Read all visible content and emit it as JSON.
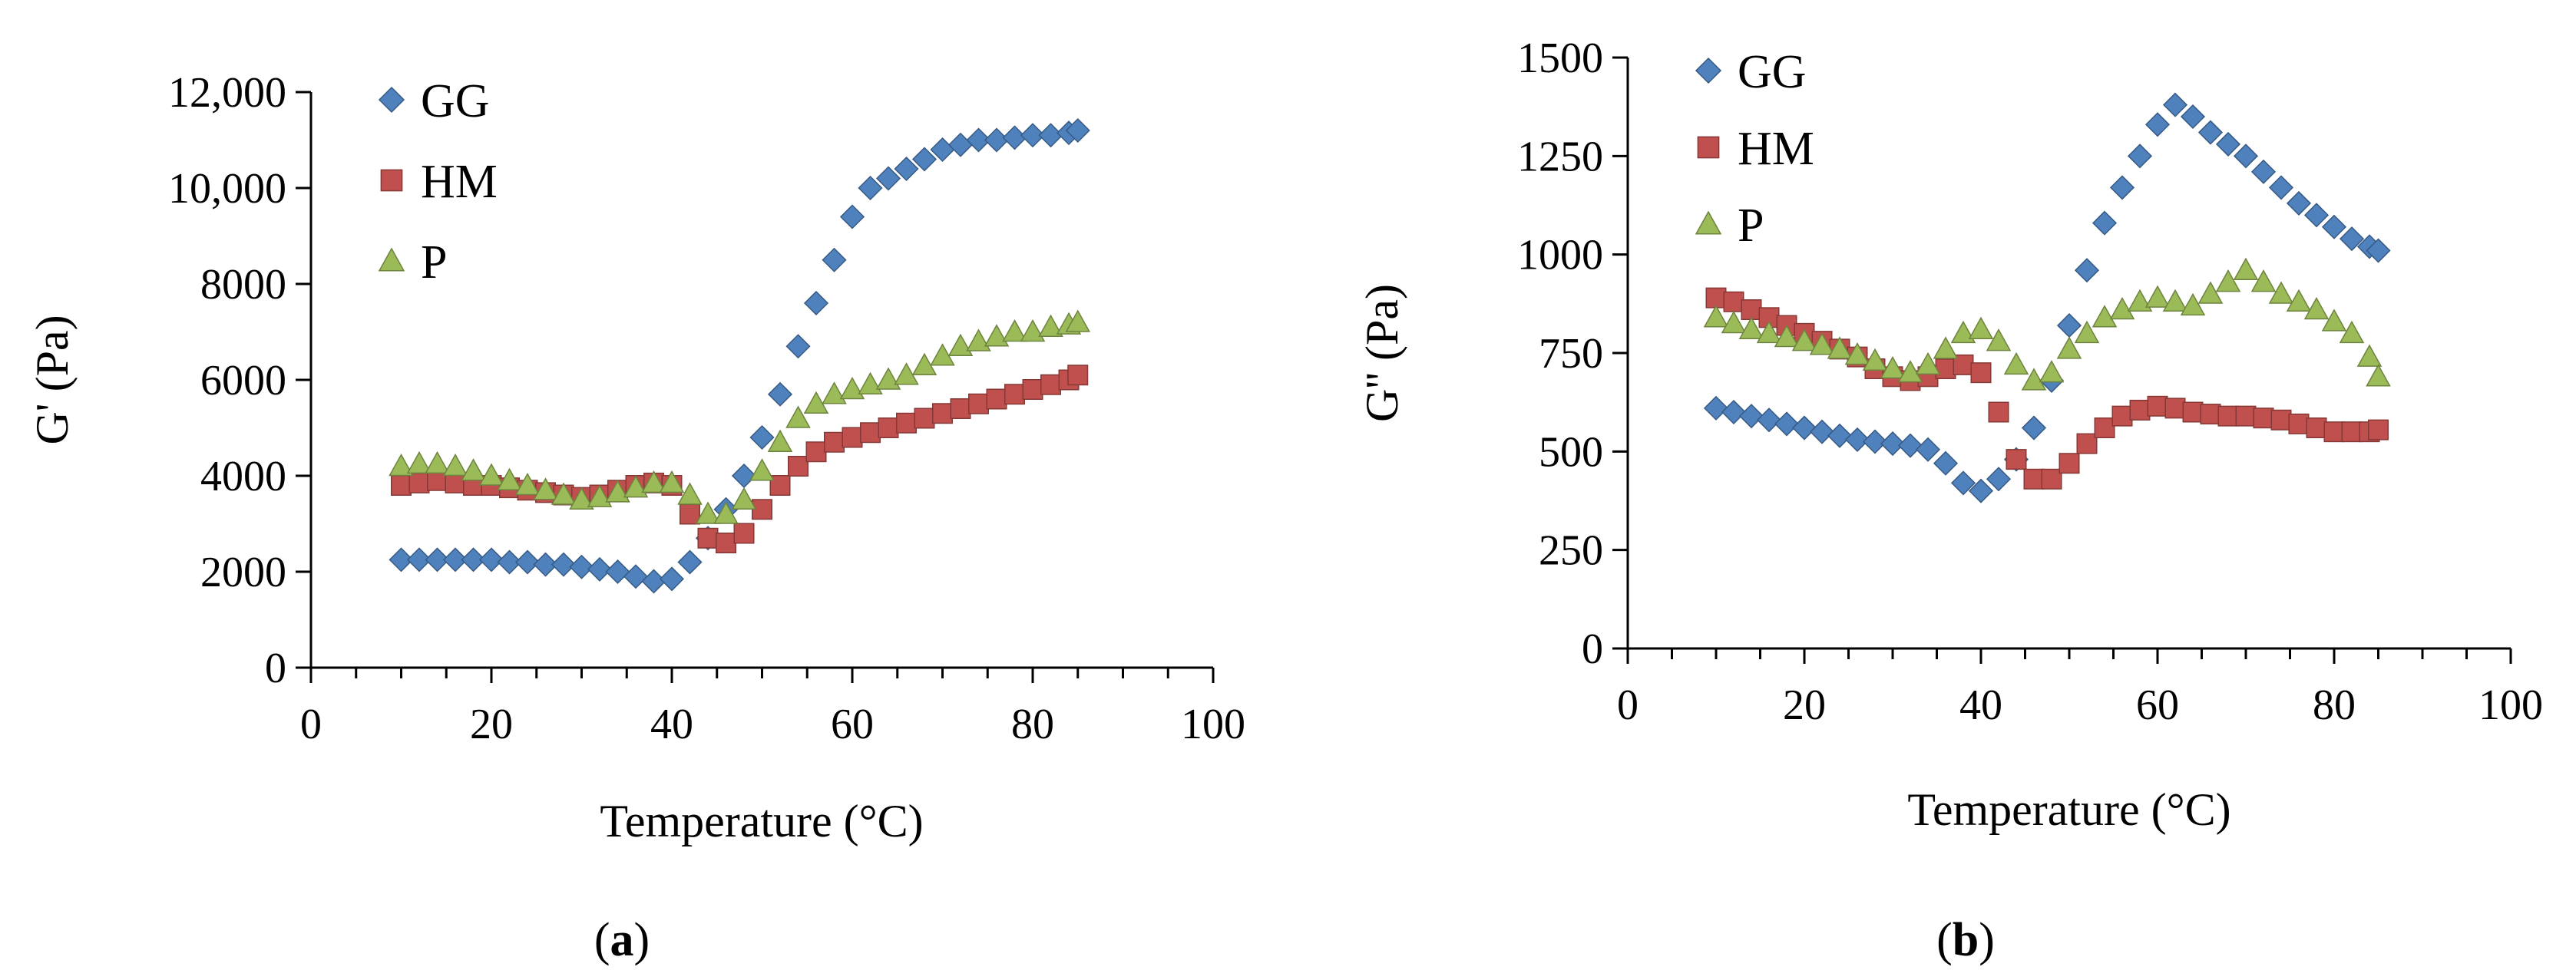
{
  "chart_data": [
    {
      "panel": "a",
      "panel_label": {
        "open": "(",
        "letter": "a",
        "close": ")"
      },
      "type": "scatter",
      "title": "",
      "xlabel": "Temperature (°C)",
      "ylabel": "G' (Pa)",
      "xlim": [
        0,
        100
      ],
      "ylim": [
        0,
        12000
      ],
      "xticks": [
        0,
        20,
        40,
        60,
        80,
        100
      ],
      "xtick_labels": [
        "0",
        "20",
        "40",
        "60",
        "80",
        "100"
      ],
      "yticks": [
        0,
        2000,
        4000,
        6000,
        8000,
        10000,
        12000
      ],
      "ytick_labels": [
        "0",
        "2000",
        "4000",
        "6000",
        "8000",
        "10,000",
        "12,000"
      ],
      "legend_position": "top-left",
      "series": [
        {
          "name": "GG",
          "marker": "diamond",
          "color": "#4F81BD",
          "x": [
            10,
            12,
            14,
            16,
            18,
            20,
            22,
            24,
            26,
            28,
            30,
            32,
            34,
            36,
            38,
            40,
            42,
            44,
            46,
            48,
            50,
            52,
            54,
            56,
            58,
            60,
            62,
            64,
            66,
            68,
            70,
            72,
            74,
            76,
            78,
            80,
            82,
            84,
            85
          ],
          "y": [
            2250,
            2250,
            2250,
            2250,
            2250,
            2250,
            2200,
            2200,
            2150,
            2150,
            2100,
            2050,
            2000,
            1900,
            1800,
            1850,
            2200,
            2700,
            3300,
            4000,
            4800,
            5700,
            6700,
            7600,
            8500,
            9400,
            10000,
            10200,
            10400,
            10600,
            10800,
            10900,
            11000,
            11000,
            11050,
            11100,
            11100,
            11150,
            11200
          ]
        },
        {
          "name": "HM",
          "marker": "square",
          "color": "#C0504D",
          "x": [
            10,
            12,
            14,
            16,
            18,
            20,
            22,
            24,
            26,
            28,
            30,
            32,
            34,
            36,
            38,
            40,
            42,
            44,
            46,
            48,
            50,
            52,
            54,
            56,
            58,
            60,
            62,
            64,
            66,
            68,
            70,
            72,
            74,
            76,
            78,
            80,
            82,
            84,
            85
          ],
          "y": [
            3800,
            3850,
            3900,
            3850,
            3800,
            3800,
            3750,
            3700,
            3650,
            3600,
            3550,
            3600,
            3700,
            3800,
            3850,
            3800,
            3200,
            2700,
            2600,
            2800,
            3300,
            3800,
            4200,
            4500,
            4700,
            4800,
            4900,
            5000,
            5100,
            5200,
            5300,
            5400,
            5500,
            5600,
            5700,
            5800,
            5900,
            6000,
            6100
          ]
        },
        {
          "name": "P",
          "marker": "triangle",
          "color": "#9BBB59",
          "x": [
            10,
            12,
            14,
            16,
            18,
            20,
            22,
            24,
            26,
            28,
            30,
            32,
            34,
            36,
            38,
            40,
            42,
            44,
            46,
            48,
            50,
            52,
            54,
            56,
            58,
            60,
            62,
            64,
            66,
            68,
            70,
            72,
            74,
            76,
            78,
            80,
            82,
            84,
            85
          ],
          "y": [
            4200,
            4250,
            4250,
            4200,
            4100,
            4000,
            3900,
            3800,
            3700,
            3600,
            3500,
            3550,
            3650,
            3750,
            3850,
            3850,
            3600,
            3200,
            3200,
            3500,
            4100,
            4700,
            5200,
            5500,
            5700,
            5800,
            5900,
            6000,
            6100,
            6300,
            6500,
            6700,
            6800,
            6900,
            7000,
            7000,
            7100,
            7150,
            7200
          ]
        }
      ]
    },
    {
      "panel": "b",
      "panel_label": {
        "open": "(",
        "letter": "b",
        "close": ")"
      },
      "type": "scatter",
      "title": "",
      "xlabel": "Temperature (°C)",
      "ylabel": "G'' (Pa)",
      "xlim": [
        0,
        100
      ],
      "ylim": [
        0,
        1500
      ],
      "xticks": [
        0,
        20,
        40,
        60,
        80,
        100
      ],
      "xtick_labels": [
        "0",
        "20",
        "40",
        "60",
        "80",
        "100"
      ],
      "yticks": [
        0,
        250,
        500,
        750,
        1000,
        1250,
        1500
      ],
      "ytick_labels": [
        "0",
        "250",
        "500",
        "750",
        "1000",
        "1250",
        "1500"
      ],
      "legend_position": "top-left",
      "series": [
        {
          "name": "GG",
          "marker": "diamond",
          "color": "#4F81BD",
          "x": [
            10,
            12,
            14,
            16,
            18,
            20,
            22,
            24,
            26,
            28,
            30,
            32,
            34,
            36,
            38,
            40,
            42,
            44,
            46,
            48,
            50,
            52,
            54,
            56,
            58,
            60,
            62,
            64,
            66,
            68,
            70,
            72,
            74,
            76,
            78,
            80,
            82,
            84,
            85
          ],
          "y": [
            610,
            600,
            590,
            580,
            570,
            560,
            550,
            540,
            530,
            525,
            520,
            515,
            505,
            470,
            420,
            400,
            430,
            480,
            560,
            680,
            820,
            960,
            1080,
            1170,
            1250,
            1330,
            1380,
            1350,
            1310,
            1280,
            1250,
            1210,
            1170,
            1130,
            1100,
            1070,
            1040,
            1020,
            1010
          ]
        },
        {
          "name": "HM",
          "marker": "square",
          "color": "#C0504D",
          "x": [
            10,
            12,
            14,
            16,
            18,
            20,
            22,
            24,
            26,
            28,
            30,
            32,
            34,
            36,
            38,
            40,
            42,
            44,
            46,
            48,
            50,
            52,
            54,
            56,
            58,
            60,
            62,
            64,
            66,
            68,
            70,
            72,
            74,
            76,
            78,
            80,
            82,
            84,
            85
          ],
          "y": [
            890,
            880,
            860,
            840,
            820,
            800,
            780,
            760,
            740,
            710,
            690,
            680,
            690,
            710,
            720,
            700,
            600,
            480,
            430,
            430,
            470,
            520,
            560,
            590,
            605,
            615,
            610,
            600,
            595,
            590,
            590,
            585,
            580,
            570,
            560,
            550,
            550,
            550,
            555
          ]
        },
        {
          "name": "P",
          "marker": "triangle",
          "color": "#9BBB59",
          "x": [
            10,
            12,
            14,
            16,
            18,
            20,
            22,
            24,
            26,
            28,
            30,
            32,
            34,
            36,
            38,
            40,
            42,
            44,
            46,
            48,
            50,
            52,
            54,
            56,
            58,
            60,
            62,
            64,
            66,
            68,
            70,
            72,
            74,
            76,
            78,
            80,
            82,
            84,
            85
          ],
          "y": [
            840,
            825,
            810,
            800,
            790,
            780,
            770,
            760,
            745,
            730,
            710,
            700,
            720,
            760,
            800,
            810,
            780,
            720,
            680,
            700,
            760,
            800,
            840,
            860,
            880,
            890,
            880,
            870,
            900,
            930,
            960,
            930,
            900,
            880,
            860,
            830,
            800,
            740,
            690
          ]
        }
      ]
    }
  ]
}
